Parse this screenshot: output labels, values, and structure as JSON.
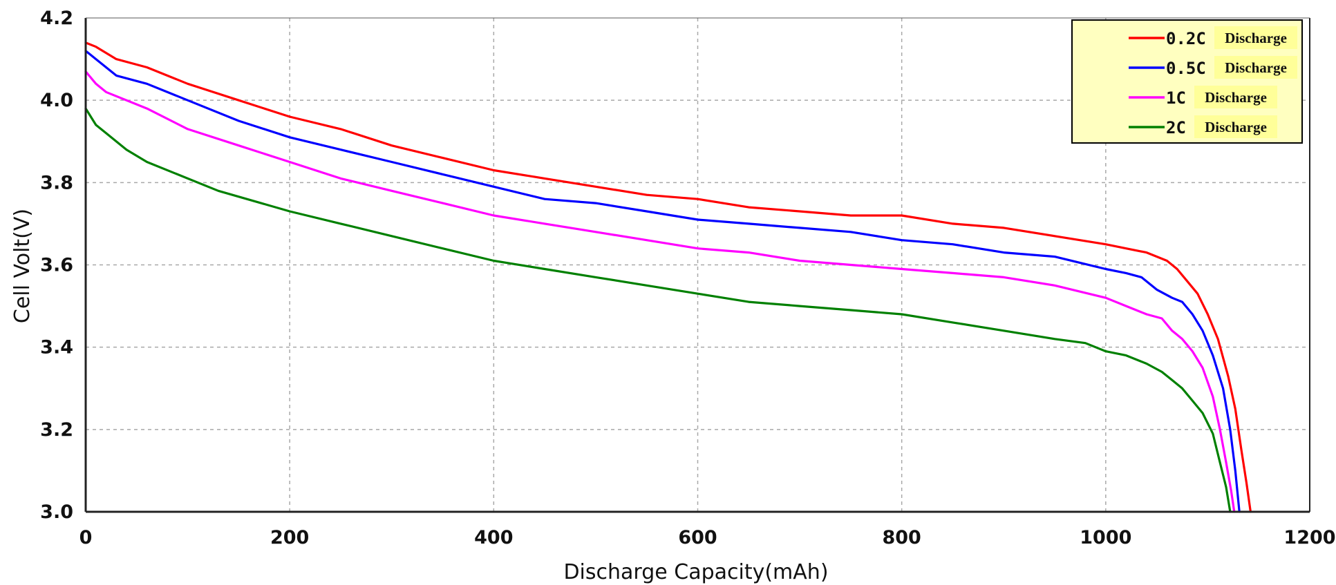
{
  "chart_data": {
    "type": "line",
    "xlabel": "Discharge Capacity(mAh)",
    "ylabel": "Cell Volt(V)",
    "xlim": [
      0,
      1200
    ],
    "ylim": [
      3.0,
      4.2
    ],
    "x_ticks": [
      "0",
      "200",
      "400",
      "600",
      "800",
      "1000",
      "1200"
    ],
    "y_ticks": [
      "3.0",
      "3.2",
      "3.4",
      "3.6",
      "3.8",
      "4.0",
      "4.2"
    ],
    "grid": true,
    "legend_position": "top-right",
    "series": [
      {
        "name": "0.2C",
        "tag": "Discharge",
        "color": "#ff0000",
        "points": [
          [
            0,
            4.14
          ],
          [
            10,
            4.13
          ],
          [
            30,
            4.1
          ],
          [
            60,
            4.08
          ],
          [
            100,
            4.04
          ],
          [
            150,
            4.0
          ],
          [
            200,
            3.96
          ],
          [
            250,
            3.93
          ],
          [
            300,
            3.89
          ],
          [
            350,
            3.86
          ],
          [
            400,
            3.83
          ],
          [
            450,
            3.81
          ],
          [
            500,
            3.79
          ],
          [
            550,
            3.77
          ],
          [
            600,
            3.76
          ],
          [
            650,
            3.74
          ],
          [
            700,
            3.73
          ],
          [
            750,
            3.72
          ],
          [
            800,
            3.72
          ],
          [
            850,
            3.7
          ],
          [
            900,
            3.69
          ],
          [
            950,
            3.67
          ],
          [
            1000,
            3.65
          ],
          [
            1020,
            3.64
          ],
          [
            1040,
            3.63
          ],
          [
            1060,
            3.61
          ],
          [
            1070,
            3.59
          ],
          [
            1080,
            3.56
          ],
          [
            1090,
            3.53
          ],
          [
            1100,
            3.48
          ],
          [
            1110,
            3.42
          ],
          [
            1120,
            3.33
          ],
          [
            1127,
            3.25
          ],
          [
            1133,
            3.15
          ],
          [
            1138,
            3.07
          ],
          [
            1142,
            3.0
          ]
        ]
      },
      {
        "name": "0.5C",
        "tag": "Discharge",
        "color": "#0000ff",
        "points": [
          [
            0,
            4.12
          ],
          [
            10,
            4.1
          ],
          [
            30,
            4.06
          ],
          [
            60,
            4.04
          ],
          [
            100,
            4.0
          ],
          [
            150,
            3.95
          ],
          [
            200,
            3.91
          ],
          [
            250,
            3.88
          ],
          [
            300,
            3.85
          ],
          [
            350,
            3.82
          ],
          [
            400,
            3.79
          ],
          [
            450,
            3.76
          ],
          [
            500,
            3.75
          ],
          [
            550,
            3.73
          ],
          [
            600,
            3.71
          ],
          [
            650,
            3.7
          ],
          [
            700,
            3.69
          ],
          [
            750,
            3.68
          ],
          [
            800,
            3.66
          ],
          [
            850,
            3.65
          ],
          [
            900,
            3.63
          ],
          [
            950,
            3.62
          ],
          [
            1000,
            3.59
          ],
          [
            1020,
            3.58
          ],
          [
            1035,
            3.57
          ],
          [
            1050,
            3.54
          ],
          [
            1065,
            3.52
          ],
          [
            1075,
            3.51
          ],
          [
            1085,
            3.48
          ],
          [
            1095,
            3.44
          ],
          [
            1105,
            3.38
          ],
          [
            1115,
            3.3
          ],
          [
            1122,
            3.2
          ],
          [
            1127,
            3.1
          ],
          [
            1131,
            3.0
          ]
        ]
      },
      {
        "name": "1C",
        "tag": "Discharge",
        "color": "#ff00ff",
        "points": [
          [
            0,
            4.07
          ],
          [
            10,
            4.04
          ],
          [
            20,
            4.02
          ],
          [
            60,
            3.98
          ],
          [
            100,
            3.93
          ],
          [
            150,
            3.89
          ],
          [
            200,
            3.85
          ],
          [
            250,
            3.81
          ],
          [
            300,
            3.78
          ],
          [
            350,
            3.75
          ],
          [
            400,
            3.72
          ],
          [
            450,
            3.7
          ],
          [
            500,
            3.68
          ],
          [
            550,
            3.66
          ],
          [
            600,
            3.64
          ],
          [
            650,
            3.63
          ],
          [
            700,
            3.61
          ],
          [
            750,
            3.6
          ],
          [
            800,
            3.59
          ],
          [
            850,
            3.58
          ],
          [
            900,
            3.57
          ],
          [
            950,
            3.55
          ],
          [
            1000,
            3.52
          ],
          [
            1020,
            3.5
          ],
          [
            1040,
            3.48
          ],
          [
            1055,
            3.47
          ],
          [
            1065,
            3.44
          ],
          [
            1075,
            3.42
          ],
          [
            1085,
            3.39
          ],
          [
            1095,
            3.35
          ],
          [
            1105,
            3.28
          ],
          [
            1112,
            3.2
          ],
          [
            1118,
            3.12
          ],
          [
            1123,
            3.05
          ],
          [
            1126,
            3.0
          ]
        ]
      },
      {
        "name": "2C",
        "tag": "Discharge",
        "color": "#008000",
        "points": [
          [
            0,
            3.98
          ],
          [
            10,
            3.94
          ],
          [
            20,
            3.92
          ],
          [
            40,
            3.88
          ],
          [
            60,
            3.85
          ],
          [
            90,
            3.82
          ],
          [
            130,
            3.78
          ],
          [
            200,
            3.73
          ],
          [
            250,
            3.7
          ],
          [
            300,
            3.67
          ],
          [
            350,
            3.64
          ],
          [
            400,
            3.61
          ],
          [
            450,
            3.59
          ],
          [
            500,
            3.57
          ],
          [
            550,
            3.55
          ],
          [
            600,
            3.53
          ],
          [
            650,
            3.51
          ],
          [
            700,
            3.5
          ],
          [
            750,
            3.49
          ],
          [
            800,
            3.48
          ],
          [
            850,
            3.46
          ],
          [
            900,
            3.44
          ],
          [
            950,
            3.42
          ],
          [
            980,
            3.41
          ],
          [
            1000,
            3.39
          ],
          [
            1020,
            3.38
          ],
          [
            1040,
            3.36
          ],
          [
            1055,
            3.34
          ],
          [
            1065,
            3.32
          ],
          [
            1075,
            3.3
          ],
          [
            1085,
            3.27
          ],
          [
            1095,
            3.24
          ],
          [
            1105,
            3.19
          ],
          [
            1112,
            3.12
          ],
          [
            1118,
            3.06
          ],
          [
            1122,
            3.0
          ]
        ]
      }
    ]
  }
}
